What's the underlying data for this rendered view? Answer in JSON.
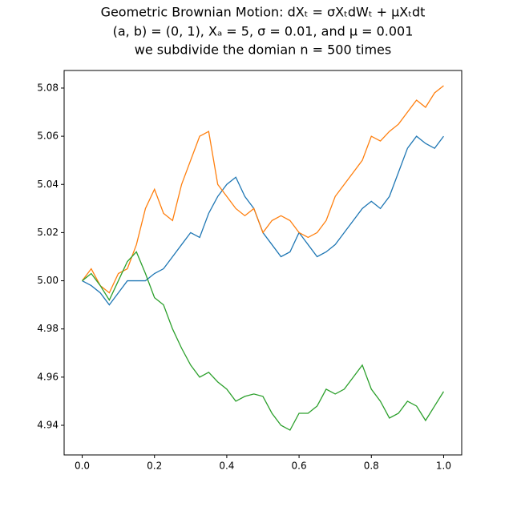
{
  "chart_data": {
    "type": "line",
    "title": [
      "Geometric Brownian Motion: dXₜ = σXₜdWₜ + μXₜdt",
      "(a, b) = (0, 1), Xₐ = 5, σ = 0.01, and μ = 0.001",
      "we subdivide the domian n = 500 times"
    ],
    "x": [
      0,
      0.025,
      0.05,
      0.075,
      0.1,
      0.125,
      0.15,
      0.175,
      0.2,
      0.225,
      0.25,
      0.275,
      0.3,
      0.325,
      0.35,
      0.375,
      0.4,
      0.425,
      0.45,
      0.475,
      0.5,
      0.525,
      0.55,
      0.575,
      0.6,
      0.625,
      0.65,
      0.675,
      0.7,
      0.725,
      0.75,
      0.775,
      0.8,
      0.825,
      0.85,
      0.875,
      0.9,
      0.925,
      0.95,
      0.975,
      1.0
    ],
    "series": [
      {
        "color": "#1f77b4",
        "values": [
          5.0,
          4.998,
          4.995,
          4.99,
          4.995,
          5.0,
          5.0,
          5.0,
          5.003,
          5.005,
          5.01,
          5.015,
          5.02,
          5.018,
          5.028,
          5.035,
          5.04,
          5.043,
          5.035,
          5.03,
          5.02,
          5.015,
          5.01,
          5.012,
          5.02,
          5.015,
          5.01,
          5.012,
          5.015,
          5.02,
          5.025,
          5.03,
          5.033,
          5.03,
          5.035,
          5.045,
          5.055,
          5.06,
          5.057,
          5.055,
          5.06
        ]
      },
      {
        "color": "#ff7f0e",
        "values": [
          5.0,
          5.005,
          4.998,
          4.995,
          5.003,
          5.005,
          5.015,
          5.03,
          5.038,
          5.028,
          5.025,
          5.04,
          5.05,
          5.06,
          5.062,
          5.04,
          5.035,
          5.03,
          5.027,
          5.03,
          5.02,
          5.025,
          5.027,
          5.025,
          5.02,
          5.018,
          5.02,
          5.025,
          5.035,
          5.04,
          5.045,
          5.05,
          5.06,
          5.058,
          5.062,
          5.065,
          5.07,
          5.075,
          5.072,
          5.078,
          5.081
        ]
      },
      {
        "color": "#2ca02c",
        "values": [
          5.0,
          5.003,
          4.998,
          4.992,
          5.0,
          5.008,
          5.012,
          5.003,
          4.993,
          4.99,
          4.98,
          4.972,
          4.965,
          4.96,
          4.962,
          4.958,
          4.955,
          4.95,
          4.952,
          4.953,
          4.952,
          4.945,
          4.94,
          4.938,
          4.945,
          4.945,
          4.948,
          4.955,
          4.953,
          4.955,
          4.96,
          4.965,
          4.955,
          4.95,
          4.943,
          4.945,
          4.95,
          4.948,
          4.942,
          4.948,
          4.954
        ]
      }
    ],
    "xlim": [
      -0.05,
      1.05
    ],
    "ylim": [
      4.9277,
      5.0873
    ],
    "xticks": [
      {
        "value": 0,
        "label": "0.0"
      },
      0.2,
      0.4,
      0.6,
      0.8,
      {
        "value": 1,
        "label": "1.0"
      }
    ],
    "yticks": [
      4.94,
      4.96,
      4.98,
      {
        "value": 5,
        "label": "5.00"
      },
      5.02,
      5.04,
      5.06,
      5.08
    ],
    "grid": false
  }
}
